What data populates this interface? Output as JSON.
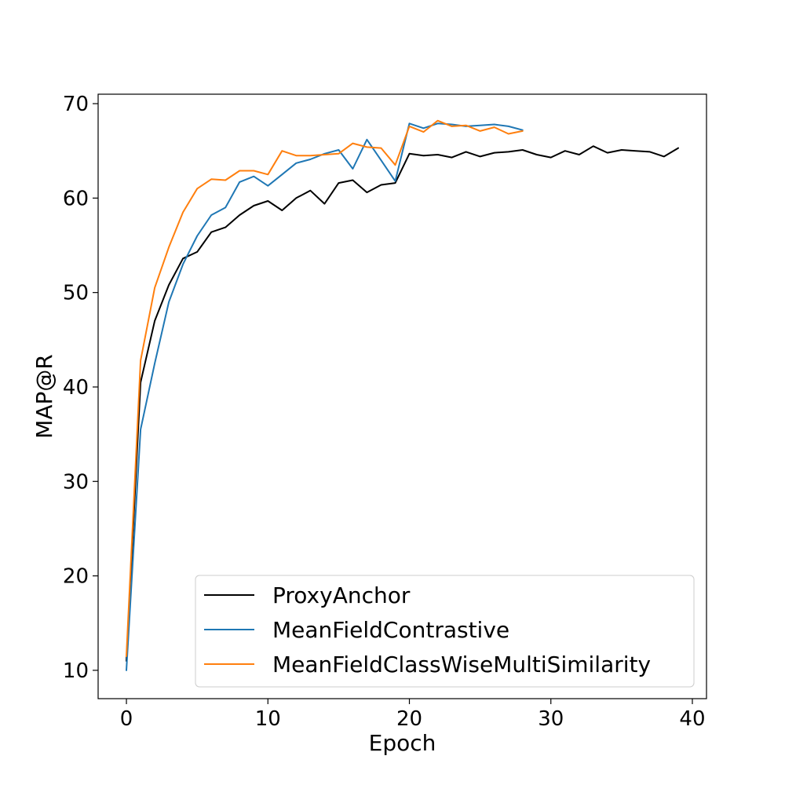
{
  "chart_data": {
    "type": "line",
    "title": "",
    "xlabel": "Epoch",
    "ylabel": "MAP@R",
    "xlim": [
      -2,
      41
    ],
    "ylim": [
      7,
      71
    ],
    "xticks": [
      0,
      10,
      20,
      30,
      40
    ],
    "yticks": [
      10,
      20,
      30,
      40,
      50,
      60,
      70
    ],
    "grid": false,
    "legend_position": "lower-right",
    "series": [
      {
        "name": "ProxyAnchor",
        "color": "#000000",
        "x": [
          0,
          1,
          2,
          3,
          4,
          5,
          6,
          7,
          8,
          9,
          10,
          11,
          12,
          13,
          14,
          15,
          16,
          17,
          18,
          19,
          20,
          21,
          22,
          23,
          24,
          25,
          26,
          27,
          28,
          29,
          30,
          31,
          32,
          33,
          34,
          35,
          36,
          37,
          38,
          39
        ],
        "values": [
          11.0,
          40.5,
          47.0,
          50.8,
          53.6,
          54.3,
          56.4,
          56.9,
          58.2,
          59.2,
          59.7,
          58.7,
          60.0,
          60.8,
          59.4,
          61.6,
          61.9,
          60.6,
          61.4,
          61.6,
          64.7,
          64.5,
          64.6,
          64.3,
          64.9,
          64.4,
          64.8,
          64.9,
          65.1,
          64.6,
          64.3,
          65.0,
          64.6,
          65.5,
          64.8,
          65.1,
          65.0,
          64.9,
          64.4,
          65.3
        ]
      },
      {
        "name": "MeanFieldContrastive",
        "color": "#1f77b4",
        "x": [
          0,
          1,
          2,
          3,
          4,
          5,
          6,
          7,
          8,
          9,
          10,
          11,
          12,
          13,
          14,
          15,
          16,
          17,
          18,
          19,
          20,
          21,
          22,
          23,
          24,
          25,
          26,
          27,
          28
        ],
        "values": [
          10.0,
          35.5,
          42.5,
          49.0,
          53.0,
          56.0,
          58.2,
          59.0,
          61.7,
          62.3,
          61.3,
          62.5,
          63.7,
          64.1,
          64.7,
          65.1,
          63.1,
          66.2,
          64.0,
          61.8,
          67.9,
          67.4,
          67.9,
          67.8,
          67.6,
          67.7,
          67.8,
          67.6,
          67.2
        ]
      },
      {
        "name": "MeanFieldClassWiseMultiSimilarity",
        "color": "#ff7f0e",
        "x": [
          0,
          1,
          2,
          3,
          4,
          5,
          6,
          7,
          8,
          9,
          10,
          11,
          12,
          13,
          14,
          15,
          16,
          17,
          18,
          19,
          20,
          21,
          22,
          23,
          24,
          25,
          26,
          27,
          28
        ],
        "values": [
          11.5,
          42.8,
          50.5,
          54.8,
          58.5,
          61.0,
          62.0,
          61.9,
          62.9,
          62.9,
          62.5,
          65.0,
          64.5,
          64.5,
          64.6,
          64.7,
          65.8,
          65.4,
          65.3,
          63.5,
          67.6,
          67.0,
          68.2,
          67.6,
          67.7,
          67.1,
          67.5,
          66.8,
          67.1
        ]
      }
    ]
  }
}
